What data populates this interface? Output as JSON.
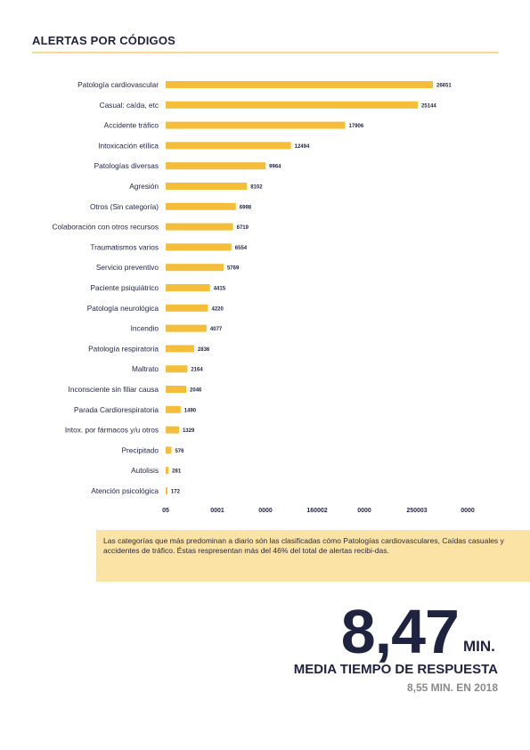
{
  "header": {
    "title": "ALERTAS POR CÓDIGOS"
  },
  "chart_data": {
    "type": "bar",
    "orientation": "horizontal",
    "categories": [
      "Patología cardiovascular",
      "Casual: caída, etc",
      "Accidente tráfico",
      "Intoxicación etílica",
      "Patologías diversas",
      "Agresión",
      "Otros (Sin categoría)",
      "Colaboración con otros recursos",
      "Traumatismos varios",
      "Servicio preventivo",
      "Paciente psiquiátrico",
      "Patología neurológica",
      "Incendio",
      "Patología respiratoria",
      "Maltrato",
      "Inconsciente sin filiar causa",
      "Parada Cardiorespiratoria",
      "Intox. por fármacos y/u otros",
      "Precipitado",
      "Autolisis",
      "Atención psicológica"
    ],
    "values": [
      26651,
      25144,
      17906,
      12494,
      9964,
      8102,
      6998,
      6719,
      6554,
      5769,
      4415,
      4220,
      4077,
      2836,
      2164,
      2046,
      1490,
      1329,
      576,
      281,
      172
    ],
    "value_labels": [
      "26651",
      "25144",
      "17906",
      "12494",
      "9964",
      "8102",
      "6998",
      "6719",
      "6554",
      "5769",
      "4415",
      "4220",
      "4077",
      "2836",
      "2164",
      "2046",
      "1490",
      "1329",
      "576",
      "281",
      "172"
    ],
    "x_tick_labels": [
      "05",
      "0001",
      "0000",
      "160002",
      "0000",
      "250003",
      "0000"
    ],
    "xlim": [
      0,
      30000
    ],
    "grid": false,
    "legend": "none",
    "bar_color": "#f4bd3a"
  },
  "callout": {
    "text": "Las categorías que más predominan a diario són las clasificadas cómo Patologías cardiovasculares, Caídas casuales y accidentes de tráfico. Éstas respresentan más del 46% del total de alertas recibi-das."
  },
  "stat": {
    "value": "8,47",
    "unit": "MIN.",
    "label": "MEDIA TIEMPO DE RESPUESTA",
    "previous": "8,55 MIN. EN 2018"
  }
}
